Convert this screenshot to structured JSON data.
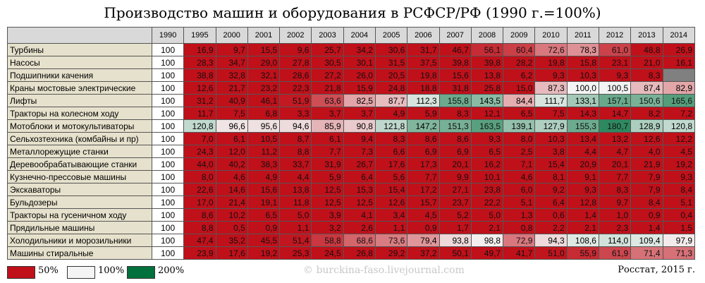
{
  "header": {
    "title": "Производство машин и оборудования в РСФСР/РФ (1990 г.=100%)"
  },
  "table": {
    "columns": [
      "1990",
      "1995",
      "2000",
      "2001",
      "2002",
      "2003",
      "2004",
      "2005",
      "2006",
      "2007",
      "2008",
      "2009",
      "2010",
      "2011",
      "2012",
      "2013",
      "2014"
    ],
    "rows": [
      {
        "label": "Турбины",
        "cells": [
          "100",
          "16,9",
          "9,7",
          "15,5",
          "9,6",
          "25,7",
          "34,2",
          "30,6",
          "31,7",
          "46,7",
          "56,1",
          "60,4",
          "72,6",
          "78,3",
          "61,0",
          "48,8",
          "26,9"
        ]
      },
      {
        "label": "Насосы",
        "cells": [
          "100",
          "28,3",
          "34,7",
          "29,0",
          "27,8",
          "30,5",
          "30,1",
          "31,5",
          "37,5",
          "39,8",
          "39,8",
          "28,2",
          "19,8",
          "15,8",
          "23,1",
          "21,0",
          "16,1"
        ]
      },
      {
        "label": "Подшипники качения",
        "cells": [
          "100",
          "38,8",
          "32,8",
          "32,1",
          "28,6",
          "27,2",
          "26,0",
          "20,5",
          "19,8",
          "15,6",
          "13,8",
          "6,2",
          "9,3",
          "10,3",
          "9,3",
          "8,3",
          null
        ]
      },
      {
        "label": "Краны мостовые электрические",
        "cells": [
          "100",
          "12,6",
          "21,7",
          "23,2",
          "22,3",
          "21,8",
          "15,9",
          "24,8",
          "18,8",
          "31,8",
          "25,8",
          "15,0",
          "87,3",
          "100,0",
          "100,5",
          "87,4",
          "82,9"
        ]
      },
      {
        "label": "Лифты",
        "cells": [
          "100",
          "31,2",
          "40,9",
          "46,1",
          "51,9",
          "63,6",
          "82,5",
          "87,7",
          "112,3",
          "155,8",
          "143,5",
          "84,4",
          "111,7",
          "133,1",
          "157,1",
          "150,6",
          "165,6"
        ]
      },
      {
        "label": "Тракторы на колесном ходу",
        "cells": [
          "100",
          "11,7",
          "7,5",
          "6,8",
          "3,3",
          "3,7",
          "3,7",
          "4,9",
          "5,9",
          "8,3",
          "12,1",
          "6,5",
          "7,5",
          "14,3",
          "14,7",
          "8,2",
          "7,2"
        ]
      },
      {
        "label": "Мотоблоки и мотокультиваторы",
        "cells": [
          "100",
          "120,8",
          "96,6",
          "95,6",
          "94,6",
          "85,9",
          "90,8",
          "121,8",
          "147,2",
          "151,3",
          "163,5",
          "139,1",
          "127,9",
          "155,3",
          "180,7",
          "128,9",
          "120,8"
        ]
      },
      {
        "label": "Сельхозтехника (комбайны и пр)",
        "cells": [
          "100",
          "7,0",
          "6,1",
          "10,5",
          "8,7",
          "6,1",
          "9,4",
          "8,3",
          "8,6",
          "8,6",
          "9,3",
          "8,0",
          "10,3",
          "13,4",
          "13,2",
          "12,6",
          "12,2"
        ]
      },
      {
        "label": "Металлорежущие станки",
        "cells": [
          "100",
          "24,3",
          "12,0",
          "11,2",
          "8,8",
          "7,7",
          "7,3",
          "6,6",
          "6,9",
          "6,9",
          "6,5",
          "2,5",
          "3,8",
          "4,4",
          "4,7",
          "4,0",
          "4,5"
        ]
      },
      {
        "label": "Деревообрабатывающие станки",
        "cells": [
          "100",
          "44,0",
          "40,2",
          "38,3",
          "33,7",
          "31,9",
          "26,7",
          "17,6",
          "17,3",
          "20,1",
          "16,2",
          "7,1",
          "15,4",
          "20,9",
          "20,1",
          "21,9",
          "19,2"
        ]
      },
      {
        "label": "Кузнечно-прессовые машины",
        "cells": [
          "100",
          "8,0",
          "4,6",
          "4,9",
          "4,4",
          "5,9",
          "6,4",
          "5,6",
          "7,7",
          "9,9",
          "10,1",
          "4,6",
          "8,1",
          "9,1",
          "7,7",
          "7,9",
          "9,3"
        ]
      },
      {
        "label": "Экскаваторы",
        "cells": [
          "100",
          "22,6",
          "14,6",
          "15,6",
          "13,8",
          "12,5",
          "15,3",
          "15,4",
          "17,2",
          "27,1",
          "23,8",
          "6,0",
          "9,2",
          "9,3",
          "8,3",
          "7,9",
          "8,4"
        ]
      },
      {
        "label": "Бульдозеры",
        "cells": [
          "100",
          "17,0",
          "21,4",
          "19,1",
          "11,8",
          "12,5",
          "12,5",
          "12,6",
          "15,7",
          "23,7",
          "22,2",
          "5,1",
          "6,4",
          "12,8",
          "9,7",
          "8,4",
          "5,1"
        ]
      },
      {
        "label": "Тракторы на гусеничном ходу",
        "cells": [
          "100",
          "8,6",
          "10,2",
          "6,5",
          "5,0",
          "3,9",
          "4,1",
          "3,4",
          "4,5",
          "5,2",
          "5,0",
          "1,3",
          "0,6",
          "1,4",
          "1,0",
          "0,9",
          "0,4"
        ]
      },
      {
        "label": "Прядильные машины",
        "cells": [
          "100",
          "8,8",
          "0,5",
          "0,9",
          "1,1",
          "3,2",
          "2,6",
          "1,1",
          "0,9",
          "1,7",
          "2,1",
          "0,8",
          "2,2",
          "2,1",
          "2,3",
          "1,4",
          "1,5"
        ]
      },
      {
        "label": "Холодильники и морозильники",
        "cells": [
          "100",
          "47,4",
          "35,2",
          "45,5",
          "51,4",
          "58,8",
          "68,6",
          "73,6",
          "79,4",
          "93,8",
          "98,8",
          "72,9",
          "94,3",
          "108,6",
          "114,0",
          "109,4",
          "97,9"
        ]
      },
      {
        "label": "Машины стиральные",
        "cells": [
          "100",
          "23,9",
          "17,6",
          "19,2",
          "25,3",
          "24,5",
          "26,8",
          "29,2",
          "37,2",
          "50,1",
          "49,7",
          "41,7",
          "51,0",
          "55,9",
          "61,9",
          "71,4",
          "71,3"
        ]
      }
    ]
  },
  "legend": [
    {
      "label": "50%",
      "value": 50,
      "color": "#c0101a"
    },
    {
      "label": "100%",
      "value": 100,
      "color": "#f4f4f4"
    },
    {
      "label": "200%",
      "value": 200,
      "color": "#00703c"
    }
  ],
  "footer": {
    "watermark": "© burckina-faso.livejournal.com",
    "source": "Росстат, 2015 г."
  }
}
